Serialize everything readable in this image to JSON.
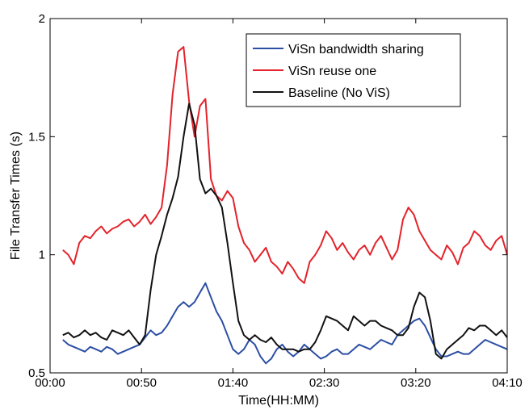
{
  "chart_data": {
    "type": "line",
    "title": "",
    "xlabel": "Time(HH:MM)",
    "ylabel": "File Transfer Times (s)",
    "x_unit": "minutes",
    "xlim": [
      0,
      250
    ],
    "ylim": [
      0.5,
      2
    ],
    "x_ticks": [
      0,
      50,
      100,
      150,
      200,
      250
    ],
    "x_tick_labels": [
      "00:00",
      "00:50",
      "01:40",
      "02:30",
      "03:20",
      "04:10"
    ],
    "y_ticks": [
      0.5,
      1,
      1.5,
      2
    ],
    "y_tick_labels": [
      "0.5",
      "1",
      "1.5",
      "2"
    ],
    "grid": false,
    "legend_position": "top-right",
    "x": [
      7,
      10,
      13,
      16,
      19,
      22,
      25,
      28,
      31,
      34,
      37,
      40,
      43,
      46,
      49,
      52,
      55,
      58,
      61,
      64,
      67,
      70,
      73,
      76,
      79,
      82,
      85,
      88,
      91,
      94,
      97,
      100,
      103,
      106,
      109,
      112,
      115,
      118,
      121,
      124,
      127,
      130,
      133,
      136,
      139,
      142,
      145,
      148,
      151,
      154,
      157,
      160,
      163,
      166,
      169,
      172,
      175,
      178,
      181,
      184,
      187,
      190,
      193,
      196,
      199,
      202,
      205,
      208,
      211,
      214,
      217,
      220,
      223,
      226,
      229,
      232,
      235,
      238,
      241,
      244,
      247,
      250
    ],
    "series": [
      {
        "name": "ViSn bandwidth sharing",
        "color": "#2c4ea3",
        "values": [
          0.64,
          0.62,
          0.61,
          0.6,
          0.59,
          0.61,
          0.6,
          0.59,
          0.61,
          0.6,
          0.58,
          0.59,
          0.6,
          0.61,
          0.62,
          0.65,
          0.68,
          0.66,
          0.67,
          0.7,
          0.74,
          0.78,
          0.8,
          0.78,
          0.8,
          0.84,
          0.88,
          0.82,
          0.76,
          0.72,
          0.66,
          0.6,
          0.58,
          0.6,
          0.64,
          0.62,
          0.57,
          0.54,
          0.56,
          0.6,
          0.62,
          0.59,
          0.57,
          0.59,
          0.62,
          0.6,
          0.58,
          0.56,
          0.57,
          0.59,
          0.6,
          0.58,
          0.58,
          0.6,
          0.62,
          0.61,
          0.6,
          0.62,
          0.64,
          0.63,
          0.62,
          0.66,
          0.68,
          0.7,
          0.72,
          0.73,
          0.7,
          0.65,
          0.6,
          0.57,
          0.57,
          0.58,
          0.59,
          0.58,
          0.58,
          0.6,
          0.62,
          0.64,
          0.63,
          0.62,
          0.61,
          0.6
        ]
      },
      {
        "name": "ViSn reuse one",
        "color": "#e3232b",
        "values": [
          1.02,
          1.0,
          0.96,
          1.05,
          1.08,
          1.07,
          1.1,
          1.12,
          1.09,
          1.11,
          1.12,
          1.14,
          1.15,
          1.12,
          1.14,
          1.17,
          1.13,
          1.16,
          1.2,
          1.38,
          1.68,
          1.86,
          1.88,
          1.65,
          1.5,
          1.63,
          1.66,
          1.32,
          1.25,
          1.23,
          1.27,
          1.24,
          1.12,
          1.05,
          1.02,
          0.97,
          1.0,
          1.03,
          0.97,
          0.95,
          0.92,
          0.97,
          0.94,
          0.9,
          0.88,
          0.97,
          1.0,
          1.04,
          1.1,
          1.07,
          1.02,
          1.05,
          1.01,
          0.98,
          1.02,
          1.04,
          1.0,
          1.05,
          1.08,
          1.03,
          0.98,
          1.02,
          1.15,
          1.2,
          1.17,
          1.1,
          1.06,
          1.02,
          1.0,
          0.98,
          1.04,
          1.01,
          0.96,
          1.03,
          1.05,
          1.1,
          1.08,
          1.04,
          1.02,
          1.06,
          1.08,
          1.0
        ]
      },
      {
        "name": "Baseline (No ViS)",
        "color": "#111111",
        "values": [
          0.66,
          0.67,
          0.65,
          0.66,
          0.68,
          0.66,
          0.67,
          0.65,
          0.64,
          0.68,
          0.67,
          0.66,
          0.68,
          0.65,
          0.62,
          0.66,
          0.85,
          1.0,
          1.08,
          1.17,
          1.24,
          1.33,
          1.5,
          1.64,
          1.55,
          1.32,
          1.26,
          1.28,
          1.25,
          1.2,
          1.05,
          0.88,
          0.72,
          0.66,
          0.64,
          0.66,
          0.64,
          0.63,
          0.65,
          0.62,
          0.6,
          0.6,
          0.6,
          0.59,
          0.6,
          0.6,
          0.63,
          0.68,
          0.74,
          0.73,
          0.72,
          0.7,
          0.68,
          0.74,
          0.72,
          0.7,
          0.72,
          0.72,
          0.7,
          0.69,
          0.68,
          0.66,
          0.66,
          0.69,
          0.78,
          0.84,
          0.82,
          0.72,
          0.58,
          0.56,
          0.6,
          0.62,
          0.64,
          0.66,
          0.69,
          0.68,
          0.7,
          0.7,
          0.68,
          0.66,
          0.68,
          0.65
        ]
      }
    ]
  }
}
